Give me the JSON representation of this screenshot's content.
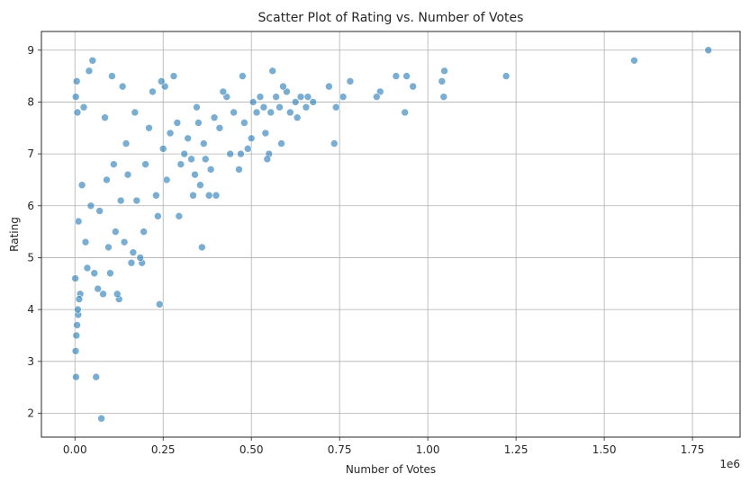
{
  "chart_data": {
    "type": "scatter",
    "title": "Scatter Plot of Rating vs. Number of Votes",
    "xlabel": "Number of Votes",
    "ylabel": "Rating",
    "x_offset_text": "1e6",
    "xlim": [
      -95000,
      1885000
    ],
    "ylim": [
      1.54,
      9.36
    ],
    "x_ticks": [
      0,
      250000,
      500000,
      750000,
      1000000,
      1250000,
      1500000,
      1750000
    ],
    "x_tick_labels": [
      "0.00",
      "0.25",
      "0.50",
      "0.75",
      "1.00",
      "1.25",
      "1.50",
      "1.75"
    ],
    "y_ticks": [
      2,
      3,
      4,
      5,
      6,
      7,
      8,
      9
    ],
    "y_tick_labels": [
      "2",
      "3",
      "4",
      "5",
      "6",
      "7",
      "8",
      "9"
    ],
    "grid": true,
    "marker_color": "#1f77b4",
    "marker_alpha": 0.6,
    "series": [
      {
        "points": [
          [
            1795000,
            9.0
          ],
          [
            1585000,
            8.8
          ],
          [
            1222000,
            8.5
          ],
          [
            1047000,
            8.6
          ],
          [
            1045000,
            8.1
          ],
          [
            1040000,
            8.4
          ],
          [
            958000,
            8.3
          ],
          [
            940000,
            8.5
          ],
          [
            935000,
            7.8
          ],
          [
            910000,
            8.5
          ],
          [
            865000,
            8.2
          ],
          [
            855000,
            8.1
          ],
          [
            780000,
            8.4
          ],
          [
            760000,
            8.1
          ],
          [
            740000,
            7.9
          ],
          [
            735000,
            7.2
          ],
          [
            720000,
            8.3
          ],
          [
            675000,
            8.0
          ],
          [
            660000,
            8.1
          ],
          [
            655000,
            7.9
          ],
          [
            640000,
            8.1
          ],
          [
            630000,
            7.7
          ],
          [
            625000,
            8.0
          ],
          [
            610000,
            7.8
          ],
          [
            600000,
            8.2
          ],
          [
            590000,
            8.3
          ],
          [
            585000,
            7.2
          ],
          [
            580000,
            7.9
          ],
          [
            570000,
            8.1
          ],
          [
            560000,
            8.6
          ],
          [
            555000,
            7.8
          ],
          [
            550000,
            7.0
          ],
          [
            545000,
            6.9
          ],
          [
            540000,
            7.4
          ],
          [
            535000,
            7.9
          ],
          [
            525000,
            8.1
          ],
          [
            515000,
            7.8
          ],
          [
            505000,
            8.0
          ],
          [
            500000,
            7.3
          ],
          [
            490000,
            7.1
          ],
          [
            480000,
            7.6
          ],
          [
            475000,
            8.5
          ],
          [
            470000,
            7.0
          ],
          [
            465000,
            6.7
          ],
          [
            450000,
            7.8
          ],
          [
            440000,
            7.0
          ],
          [
            430000,
            8.1
          ],
          [
            420000,
            8.2
          ],
          [
            410000,
            7.5
          ],
          [
            400000,
            6.2
          ],
          [
            395000,
            7.7
          ],
          [
            385000,
            6.7
          ],
          [
            380000,
            6.2
          ],
          [
            370000,
            6.9
          ],
          [
            365000,
            7.2
          ],
          [
            360000,
            5.2
          ],
          [
            355000,
            6.4
          ],
          [
            350000,
            7.6
          ],
          [
            345000,
            7.9
          ],
          [
            340000,
            6.6
          ],
          [
            335000,
            6.2
          ],
          [
            330000,
            6.9
          ],
          [
            320000,
            7.3
          ],
          [
            310000,
            7.0
          ],
          [
            300000,
            6.8
          ],
          [
            295000,
            5.8
          ],
          [
            290000,
            7.6
          ],
          [
            280000,
            8.5
          ],
          [
            270000,
            7.4
          ],
          [
            260000,
            6.5
          ],
          [
            255000,
            8.3
          ],
          [
            250000,
            7.1
          ],
          [
            245000,
            8.4
          ],
          [
            240000,
            4.1
          ],
          [
            235000,
            5.8
          ],
          [
            230000,
            6.2
          ],
          [
            220000,
            8.2
          ],
          [
            210000,
            7.5
          ],
          [
            200000,
            6.8
          ],
          [
            195000,
            5.5
          ],
          [
            190000,
            4.9
          ],
          [
            185000,
            5.0
          ],
          [
            175000,
            6.1
          ],
          [
            170000,
            7.8
          ],
          [
            165000,
            5.1
          ],
          [
            160000,
            4.9
          ],
          [
            150000,
            6.6
          ],
          [
            145000,
            7.2
          ],
          [
            140000,
            5.3
          ],
          [
            135000,
            8.3
          ],
          [
            130000,
            6.1
          ],
          [
            125000,
            4.2
          ],
          [
            120000,
            4.3
          ],
          [
            115000,
            5.5
          ],
          [
            110000,
            6.8
          ],
          [
            105000,
            8.5
          ],
          [
            100000,
            4.7
          ],
          [
            95000,
            5.2
          ],
          [
            90000,
            6.5
          ],
          [
            85000,
            7.7
          ],
          [
            80000,
            4.3
          ],
          [
            75000,
            1.9
          ],
          [
            70000,
            5.9
          ],
          [
            65000,
            4.4
          ],
          [
            60000,
            2.7
          ],
          [
            55000,
            4.7
          ],
          [
            50000,
            8.8
          ],
          [
            45000,
            6.0
          ],
          [
            40000,
            8.6
          ],
          [
            35000,
            4.8
          ],
          [
            30000,
            5.3
          ],
          [
            25000,
            7.9
          ],
          [
            20000,
            6.4
          ],
          [
            15000,
            4.3
          ],
          [
            12000,
            4.2
          ],
          [
            9000,
            3.9
          ],
          [
            7000,
            7.8
          ],
          [
            5000,
            8.4
          ],
          [
            3000,
            2.7
          ],
          [
            2000,
            3.2
          ],
          [
            4000,
            3.5
          ],
          [
            6000,
            3.7
          ],
          [
            8000,
            4.0
          ],
          [
            1000,
            4.6
          ],
          [
            10000,
            5.7
          ],
          [
            2500,
            8.1
          ]
        ]
      }
    ]
  }
}
